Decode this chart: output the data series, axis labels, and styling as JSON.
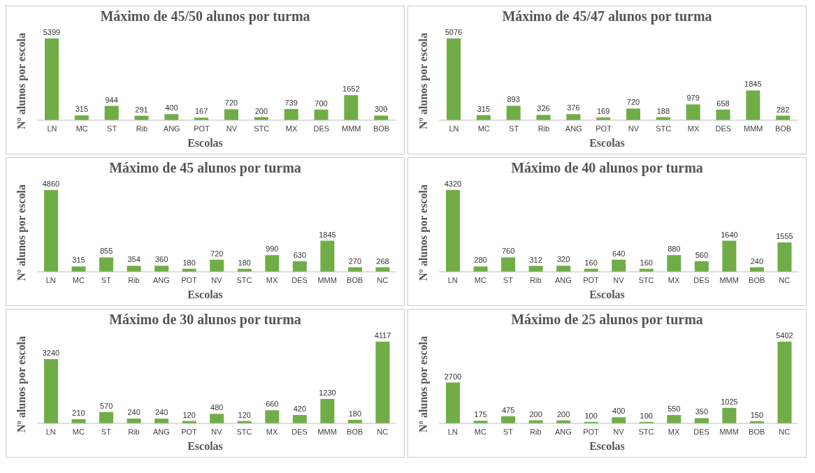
{
  "chart_data": [
    {
      "type": "bar",
      "title": "Máximo de 45/50 alunos por turma",
      "xlabel": "Escolas",
      "ylabel": "Nº alunos por escola",
      "categories": [
        "LN",
        "MC",
        "ST",
        "Rib",
        "ANG",
        "POT",
        "NV",
        "STC",
        "MX",
        "DES",
        "MMM",
        "BOB"
      ],
      "values": [
        5399,
        315,
        944,
        291,
        400,
        167,
        720,
        200,
        739,
        700,
        1652,
        300
      ],
      "color": "#70ad47",
      "data_labels": true
    },
    {
      "type": "bar",
      "title": "Máximo de 45/47 alunos por turma",
      "xlabel": "Escolas",
      "ylabel": "Nº alunos por escola",
      "categories": [
        "LN",
        "MC",
        "ST",
        "Rib",
        "ANG",
        "POT",
        "NV",
        "STC",
        "MX",
        "DES",
        "MMM",
        "BOB"
      ],
      "values": [
        5076,
        315,
        893,
        326,
        376,
        169,
        720,
        188,
        979,
        658,
        1845,
        282
      ],
      "color": "#70ad47",
      "data_labels": true
    },
    {
      "type": "bar",
      "title": "Máximo de 45 alunos por turma",
      "xlabel": "Escolas",
      "ylabel": "Nº alunos por escola",
      "categories": [
        "LN",
        "MC",
        "ST",
        "Rib",
        "ANG",
        "POT",
        "NV",
        "STC",
        "MX",
        "DES",
        "MMM",
        "BOB",
        "NC"
      ],
      "values": [
        4860,
        315,
        855,
        354,
        360,
        180,
        720,
        180,
        990,
        630,
        1845,
        270,
        268
      ],
      "color": "#70ad47",
      "data_labels": true
    },
    {
      "type": "bar",
      "title": "Máximo de 40 alunos por turma",
      "xlabel": "Escolas",
      "ylabel": "Nº alunos por escola",
      "categories": [
        "LN",
        "MC",
        "ST",
        "Rib",
        "ANG",
        "POT",
        "NV",
        "STC",
        "MX",
        "DES",
        "MMM",
        "BOB",
        "NC"
      ],
      "values": [
        4320,
        280,
        760,
        312,
        320,
        160,
        640,
        160,
        880,
        560,
        1640,
        240,
        1555
      ],
      "color": "#70ad47",
      "data_labels": true
    },
    {
      "type": "bar",
      "title": "Máximo de 30 alunos por turma",
      "xlabel": "Escolas",
      "ylabel": "Nº alunos por escola",
      "categories": [
        "LN",
        "MC",
        "ST",
        "Rib",
        "ANG",
        "POT",
        "NV",
        "STC",
        "MX",
        "DES",
        "MMM",
        "BOB",
        "NC"
      ],
      "values": [
        3240,
        210,
        570,
        240,
        240,
        120,
        480,
        120,
        660,
        420,
        1230,
        180,
        4117
      ],
      "color": "#70ad47",
      "data_labels": true
    },
    {
      "type": "bar",
      "title": "Máximo de 25 alunos por turma",
      "xlabel": "Escolas",
      "ylabel": "Nº alunos por escola",
      "categories": [
        "LN",
        "MC",
        "ST",
        "Rib",
        "ANG",
        "POT",
        "NV",
        "STC",
        "MX",
        "DES",
        "MMM",
        "BOB",
        "NC"
      ],
      "values": [
        2700,
        175,
        475,
        200,
        200,
        100,
        400,
        100,
        550,
        350,
        1025,
        150,
        5402
      ],
      "color": "#70ad47",
      "data_labels": true
    }
  ]
}
